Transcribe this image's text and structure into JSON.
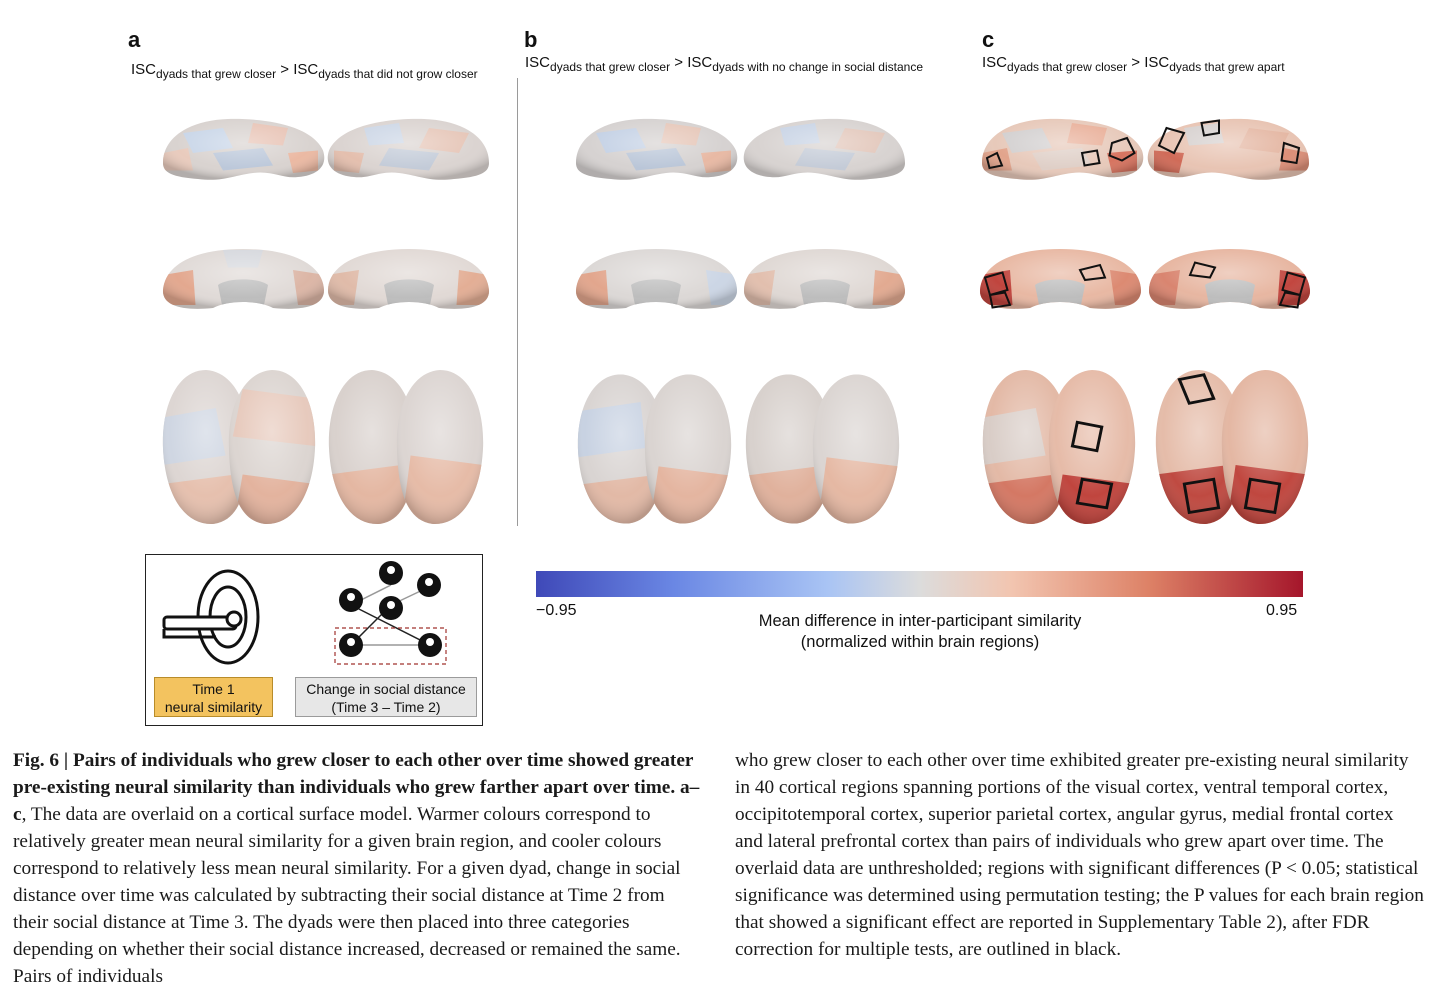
{
  "panels": [
    {
      "letter": "a",
      "isc": "ISC",
      "sub1": "dyads that grew closer",
      "gt": " > ",
      "isc2": "ISC",
      "sub2": "dyads that did not grow closer"
    },
    {
      "letter": "b",
      "isc": "ISC",
      "sub1": "dyads that grew closer",
      "gt": " > ",
      "isc2": "ISC",
      "sub2": "dyads with no change in social distance"
    },
    {
      "letter": "c",
      "isc": "ISC",
      "sub1": "dyads that grew closer",
      "gt": " > ",
      "isc2": "ISC",
      "sub2": "dyads that grew apart"
    }
  ],
  "legend": {
    "time1_line1": "Time 1",
    "time1_line2": "neural similarity",
    "change_line1": "Change in social distance",
    "change_line2": "(Time 3 – Time 2)",
    "icons": [
      "mri-scanner-icon",
      "social-network-icon"
    ]
  },
  "colorbar": {
    "min": "−0.95",
    "max": "0.95",
    "label_line1": "Mean difference in inter-participant similarity",
    "label_line2": "(normalized within brain regions)",
    "colors": [
      "#3f49b8",
      "#dcdcdc",
      "#a5162b"
    ]
  },
  "caption": {
    "label": "Fig. 6 | ",
    "bold_title": "Pairs of individuals who grew closer to each other over time showed greater pre-existing neural similarity than individuals who grew farther apart over time.",
    "panel_ref": " a–c",
    "left_body": ", The data are overlaid on a cortical surface model. Warmer colours correspond to relatively greater mean neural similarity for a given brain region, and cooler colours correspond to relatively less mean neural similarity. For a given dyad, change in social distance over time was calculated by subtracting their social distance at Time 2 from their social distance at Time 3. The dyads were then placed into three categories depending on whether their social distance increased, decreased or remained the same. Pairs of individuals",
    "right_body": "who grew closer to each other over time exhibited greater pre-existing neural similarity in 40 cortical regions spanning portions of the visual cortex, ventral temporal cortex, occipitotemporal cortex, superior parietal cortex, angular gyrus, medial frontal cortex and lateral prefrontal cortex than pairs of individuals who grew apart over time. The overlaid data are unthresholded; regions with significant differences (P < 0.05; statistical significance was determined using permutation testing; the P values for each brain region that showed a significant effect are reported in Supplementary Table 2), after FDR correction for multiple tests, are outlined in black."
  }
}
